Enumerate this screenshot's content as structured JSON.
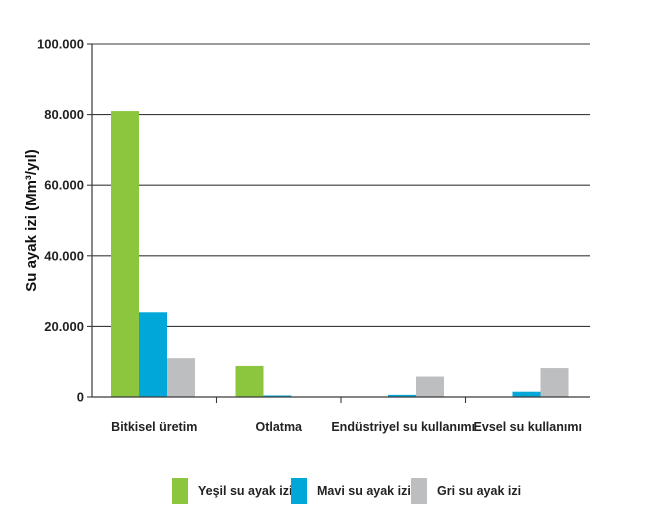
{
  "chart_data": {
    "type": "bar",
    "ylabel": "Su ayak izi (Mm³/yıl)",
    "xlabel": "",
    "ylim": [
      0,
      100000
    ],
    "yticks": [
      0,
      20000,
      40000,
      60000,
      80000,
      100000
    ],
    "ytick_labels": [
      "0",
      "20.000",
      "40.000",
      "60.000",
      "80.000",
      "100.000"
    ],
    "grid": true,
    "legend_position": "bottom",
    "categories": [
      "Bitkisel üretim",
      "Otlatma",
      "Endüstriyel su kullanımı",
      "Evsel su kullanımı"
    ],
    "series": [
      {
        "name": "Yeşil su ayak izi",
        "color": "#8cc63f",
        "values": [
          81000,
          8800,
          0,
          0
        ]
      },
      {
        "name": "Mavi su ayak izi",
        "color": "#00a7d8",
        "values": [
          24000,
          300,
          600,
          1500
        ]
      },
      {
        "name": "Gri su ayak izi",
        "color": "#bcbec0",
        "values": [
          11000,
          0,
          5800,
          8200
        ]
      }
    ]
  }
}
